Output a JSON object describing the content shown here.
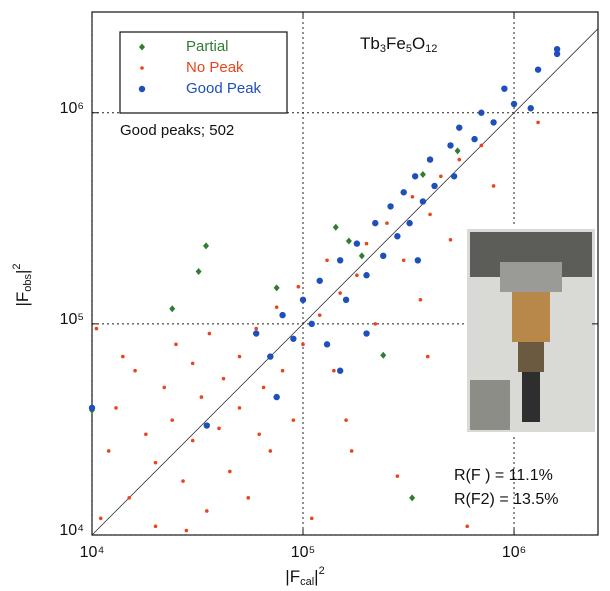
{
  "chart_data": {
    "type": "scatter",
    "annotation_formula": [
      "Tb",
      "3",
      "Fe",
      "5",
      "O",
      "12"
    ],
    "annotations": [
      "Good peaks; 502",
      "R(F ) = 11.1%",
      "R(F2) = 13.5%"
    ],
    "x_label": [
      "|F",
      "cal",
      "|",
      "2"
    ],
    "y_label": [
      "|F",
      "obs",
      "|",
      "2"
    ],
    "xscale": "log",
    "yscale": "log",
    "grid": true,
    "legend": "upper left",
    "xlim": [
      10000,
      2500000
    ],
    "ylim": [
      10000,
      3000000
    ],
    "xticks": [
      {
        "value": 10000,
        "label": "10⁴"
      },
      {
        "value": 100000,
        "label": "10⁵"
      },
      {
        "value": 1000000,
        "label": "10⁶"
      }
    ],
    "yticks": [
      {
        "value": 10000,
        "label": "10⁴"
      },
      {
        "value": 100000,
        "label": "10⁵"
      },
      {
        "value": 1000000,
        "label": "10⁶"
      }
    ],
    "series": [
      {
        "name": "Partial",
        "color": "#2e7d32",
        "marker": "diamond",
        "x": [
          34700,
          32000,
          24000,
          75000,
          143000,
          165000,
          240000,
          329000,
          10000,
          370000,
          540000,
          190000
        ],
        "values": [
          234000,
          177000,
          118000,
          148000,
          287000,
          247000,
          71000,
          15000,
          39000,
          510000,
          660000,
          210000
        ]
      },
      {
        "name": "No Peak",
        "color": "#e8451e",
        "marker": "dot",
        "x": [
          11000,
          12000,
          13000,
          15000,
          16000,
          18000,
          20000,
          20000,
          22000,
          24000,
          25000,
          27000,
          30000,
          30000,
          33000,
          35000,
          36000,
          40000,
          42000,
          45000,
          50000,
          50000,
          55000,
          60000,
          65000,
          70000,
          75000,
          80000,
          90000,
          95000,
          100000,
          110000,
          120000,
          130000,
          140000,
          150000,
          170000,
          180000,
          200000,
          220000,
          250000,
          280000,
          300000,
          330000,
          360000,
          400000,
          450000,
          500000,
          550000,
          600000,
          700000,
          800000,
          1000000,
          1300000,
          10500,
          14000,
          28000,
          62000,
          160000,
          390000
        ],
        "values": [
          12000,
          25000,
          40000,
          15000,
          60000,
          30000,
          11000,
          22000,
          50000,
          35000,
          80000,
          18000,
          28000,
          65000,
          45000,
          13000,
          90000,
          32000,
          55000,
          20000,
          70000,
          40000,
          15000,
          95000,
          50000,
          25000,
          120000,
          60000,
          35000,
          150000,
          80000,
          12000,
          110000,
          200000,
          60000,
          140000,
          25000,
          170000,
          240000,
          100000,
          300000,
          19000,
          200000,
          400000,
          130000,
          330000,
          500000,
          250000,
          600000,
          11000,
          700000,
          450000,
          1100000,
          900000,
          95000,
          70000,
          10500,
          30000,
          35000,
          70000
        ]
      },
      {
        "name": "Good Peak",
        "color": "#1f4fb8",
        "marker": "circle",
        "x": [
          60000,
          70000,
          80000,
          90000,
          100000,
          110000,
          120000,
          130000,
          150000,
          160000,
          180000,
          200000,
          220000,
          240000,
          260000,
          280000,
          300000,
          320000,
          340000,
          350000,
          370000,
          400000,
          420000,
          500000,
          520000,
          550000,
          650000,
          700000,
          800000,
          900000,
          1000000,
          1300000,
          1600000,
          1600000,
          1200000,
          10000,
          35000,
          75000,
          150000,
          200000
        ],
        "values": [
          90000,
          70000,
          110000,
          85000,
          130000,
          100000,
          160000,
          80000,
          200000,
          130000,
          240000,
          170000,
          300000,
          210000,
          360000,
          260000,
          420000,
          300000,
          500000,
          200000,
          380000,
          600000,
          450000,
          700000,
          500000,
          850000,
          750000,
          1000000,
          900000,
          1300000,
          1100000,
          1600000,
          2000000,
          1900000,
          1050000,
          40000,
          33000,
          45000,
          60000,
          90000
        ]
      }
    ]
  }
}
